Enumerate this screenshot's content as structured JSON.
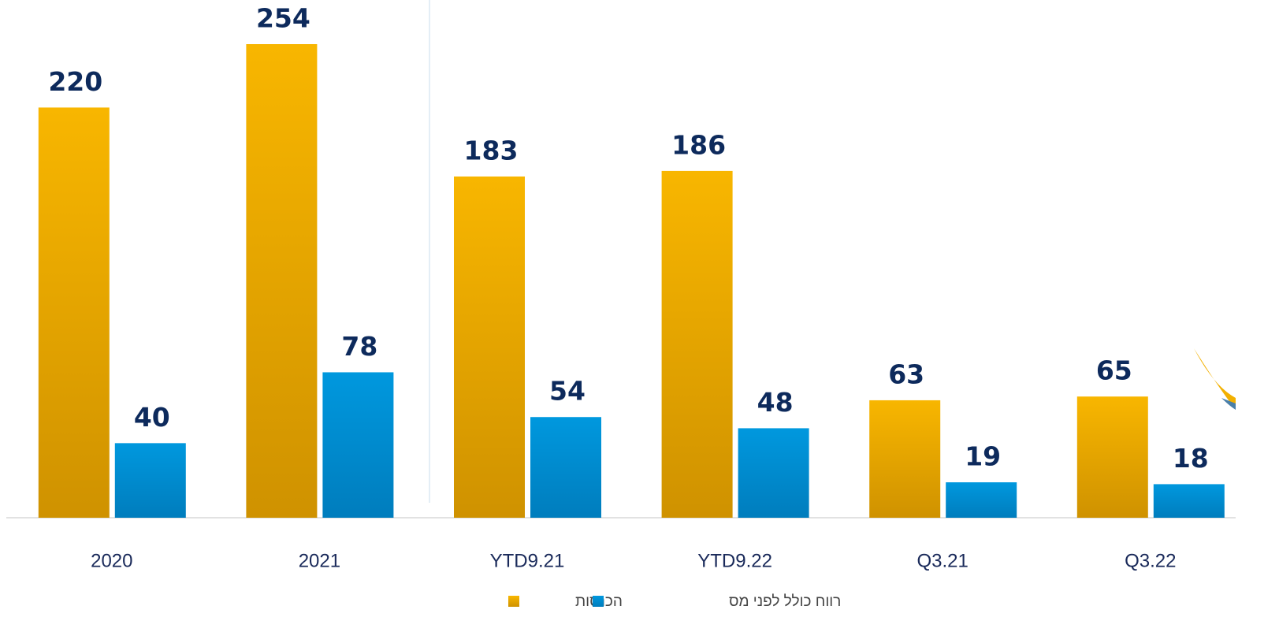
{
  "chart_data": {
    "type": "bar",
    "categories": [
      "2020",
      "2021",
      "YTD9.21",
      "YTD9.22",
      "Q3.21",
      "Q3.22"
    ],
    "series": [
      {
        "name": "הכנסות",
        "color": "#f2b000",
        "values": [
          220,
          254,
          183,
          186,
          63,
          65
        ]
      },
      {
        "name": "רווח כולל לפני מס",
        "color": "#0092d6",
        "values": [
          40,
          78,
          54,
          48,
          19,
          18
        ]
      }
    ]
  }
}
